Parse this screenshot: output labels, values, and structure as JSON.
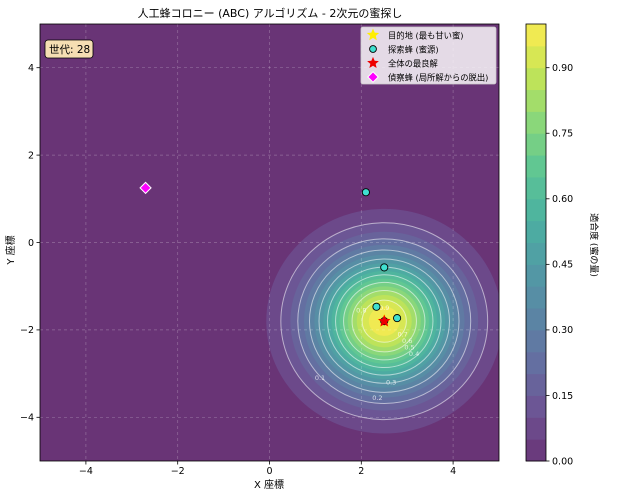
{
  "chart_data": {
    "type": "heatmap",
    "title": "人工蜂コロニー (ABC) アルゴリズム - 2次元の蜜探し",
    "xlabel": "X 座標",
    "ylabel": "Y 座標",
    "xlim": [
      -5,
      5
    ],
    "ylim": [
      -5,
      5
    ],
    "x_ticks": [
      -4,
      -2,
      0,
      2,
      4
    ],
    "y_ticks": [
      -4,
      -2,
      0,
      2,
      4
    ],
    "x_tick_labels": [
      "−4",
      "−2",
      "0",
      "2",
      "4"
    ],
    "y_tick_labels": [
      "−4",
      "−2",
      "0",
      "2",
      "4"
    ],
    "grid": true,
    "field": {
      "center": [
        2.5,
        -1.8
      ],
      "sigma": 1.05,
      "note": "fitness (nectar amount) peaks at center, decays radially"
    },
    "contour_labels": [
      {
        "value": "0.9",
        "at": [
          2.5,
          -1.55
        ]
      },
      {
        "value": "0.8",
        "at": [
          2.0,
          -1.6
        ]
      },
      {
        "value": "0.7",
        "at": [
          2.9,
          -2.15
        ]
      },
      {
        "value": "0.6",
        "at": [
          3.0,
          -2.3
        ]
      },
      {
        "value": "0.5",
        "at": [
          3.05,
          -2.45
        ]
      },
      {
        "value": "0.4",
        "at": [
          3.15,
          -2.6
        ]
      },
      {
        "value": "0.3",
        "at": [
          2.65,
          -3.25
        ]
      },
      {
        "value": "0.2",
        "at": [
          2.35,
          -3.6
        ]
      },
      {
        "value": "0.1",
        "at": [
          1.1,
          -3.15
        ]
      }
    ],
    "annotation": {
      "label": "世代",
      "value": 28,
      "text": "世代: 28"
    },
    "series": [
      {
        "name": "目的地 (最も甘い蜜)",
        "marker": "star",
        "color": "#ffee00",
        "points": [
          [
            2.5,
            -1.8
          ]
        ]
      },
      {
        "name": "探索蜂 (蜜源)",
        "marker": "circle",
        "color": "#40e0d0",
        "points": [
          [
            2.1,
            1.15
          ],
          [
            2.5,
            -0.57
          ],
          [
            2.33,
            -1.47
          ],
          [
            2.78,
            -1.73
          ],
          [
            2.5,
            -1.8
          ]
        ]
      },
      {
        "name": "全体の最良解",
        "marker": "star",
        "color": "#ee0000",
        "points": [
          [
            2.5,
            -1.8
          ]
        ]
      },
      {
        "name": "偵察蜂 (局所解からの脱出)",
        "marker": "diamond",
        "color": "#ff00ff",
        "points": [
          [
            -2.7,
            1.25
          ]
        ]
      }
    ],
    "colorbar": {
      "label": "適合度 (蜜の量)",
      "min": 0.0,
      "max": 1.0,
      "ticks": [
        0.0,
        0.15,
        0.3,
        0.45,
        0.6,
        0.75,
        0.9
      ],
      "tick_labels": [
        "0.00",
        "0.15",
        "0.30",
        "0.45",
        "0.60",
        "0.75",
        "0.90"
      ],
      "colormap": "viridis",
      "alpha": 0.8
    },
    "legend_position": "top-right"
  },
  "colors": {
    "contour_line": "#ffffff",
    "grid": "#ffffff",
    "annotation_bg": "#f5deb3"
  }
}
